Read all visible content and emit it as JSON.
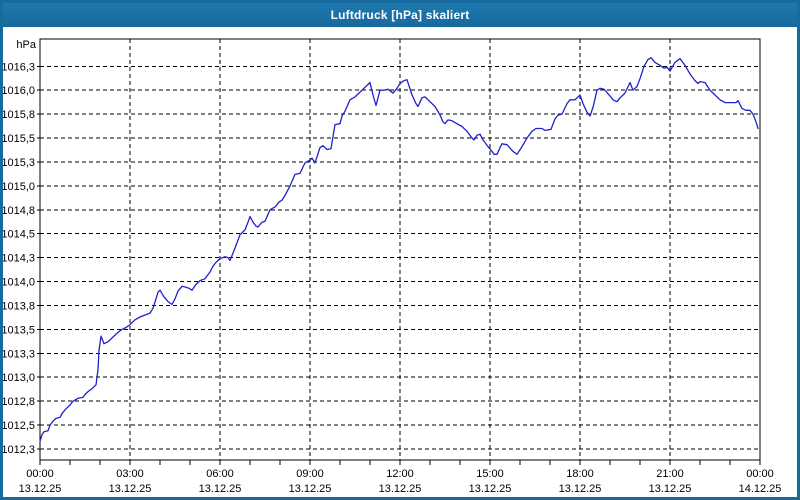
{
  "window": {
    "title": "Luftdruck [hPa] skaliert"
  },
  "colors": {
    "frame": "#176a9e",
    "titlebar_text": "#ffffff",
    "plot_background": "#ffffff",
    "grid": "#000000",
    "axis_text": "#000000",
    "line": "#2121c8"
  },
  "chart_data": {
    "type": "line",
    "title": "Luftdruck [hPa] skaliert",
    "ylabel_unit": "hPa",
    "grid": "dashed",
    "y_axis": {
      "range_top": 1016.535,
      "range_bottom": 1012.135,
      "ticks": [
        {
          "value": 1016.25,
          "label": "1016,3"
        },
        {
          "value": 1016.0,
          "label": "1016,0"
        },
        {
          "value": 1015.75,
          "label": "1015,8"
        },
        {
          "value": 1015.5,
          "label": "1015,5"
        },
        {
          "value": 1015.25,
          "label": "1015,3"
        },
        {
          "value": 1015.0,
          "label": "1015,0"
        },
        {
          "value": 1014.75,
          "label": "1014,8"
        },
        {
          "value": 1014.5,
          "label": "1014,5"
        },
        {
          "value": 1014.25,
          "label": "1014,3"
        },
        {
          "value": 1014.0,
          "label": "1014,0"
        },
        {
          "value": 1013.75,
          "label": "1013,8"
        },
        {
          "value": 1013.5,
          "label": "1013,5"
        },
        {
          "value": 1013.25,
          "label": "1013,3"
        },
        {
          "value": 1013.0,
          "label": "1013,0"
        },
        {
          "value": 1012.75,
          "label": "1012,8"
        },
        {
          "value": 1012.5,
          "label": "1012,5"
        },
        {
          "value": 1012.25,
          "label": "1012,3"
        }
      ]
    },
    "x_axis": {
      "range_minutes": [
        0,
        1440
      ],
      "minor_tick_minutes": 60,
      "ticks": [
        {
          "minutes": 0,
          "time": "00:00",
          "date": "13.12.25"
        },
        {
          "minutes": 180,
          "time": "03:00",
          "date": "13.12.25"
        },
        {
          "minutes": 360,
          "time": "06:00",
          "date": "13.12.25"
        },
        {
          "minutes": 540,
          "time": "09:00",
          "date": "13.12.25"
        },
        {
          "minutes": 720,
          "time": "12:00",
          "date": "13.12.25"
        },
        {
          "minutes": 900,
          "time": "15:00",
          "date": "13.12.25"
        },
        {
          "minutes": 1080,
          "time": "18:00",
          "date": "13.12.25"
        },
        {
          "minutes": 1260,
          "time": "21:00",
          "date": "13.12.25"
        },
        {
          "minutes": 1440,
          "time": "00:00",
          "date": "14.12.25"
        }
      ]
    },
    "series": [
      {
        "name": "Luftdruck",
        "color": "#2121c8",
        "points": [
          [
            0,
            1012.33
          ],
          [
            4,
            1012.4
          ],
          [
            8,
            1012.43
          ],
          [
            16,
            1012.44
          ],
          [
            20,
            1012.5
          ],
          [
            26,
            1012.54
          ],
          [
            32,
            1012.57
          ],
          [
            40,
            1012.58
          ],
          [
            44,
            1012.62
          ],
          [
            52,
            1012.67
          ],
          [
            60,
            1012.71
          ],
          [
            66,
            1012.75
          ],
          [
            76,
            1012.78
          ],
          [
            86,
            1012.79
          ],
          [
            90,
            1012.82
          ],
          [
            96,
            1012.85
          ],
          [
            104,
            1012.88
          ],
          [
            112,
            1012.92
          ],
          [
            116,
            1013.08
          ],
          [
            118,
            1013.28
          ],
          [
            122,
            1013.43
          ],
          [
            128,
            1013.35
          ],
          [
            136,
            1013.37
          ],
          [
            146,
            1013.42
          ],
          [
            156,
            1013.47
          ],
          [
            164,
            1013.5
          ],
          [
            172,
            1013.52
          ],
          [
            180,
            1013.55
          ],
          [
            190,
            1013.6
          ],
          [
            200,
            1013.63
          ],
          [
            210,
            1013.65
          ],
          [
            220,
            1013.67
          ],
          [
            226,
            1013.72
          ],
          [
            232,
            1013.82
          ],
          [
            236,
            1013.89
          ],
          [
            240,
            1013.91
          ],
          [
            248,
            1013.84
          ],
          [
            256,
            1013.79
          ],
          [
            264,
            1013.76
          ],
          [
            270,
            1013.82
          ],
          [
            276,
            1013.9
          ],
          [
            284,
            1013.95
          ],
          [
            292,
            1013.94
          ],
          [
            298,
            1013.93
          ],
          [
            304,
            1013.91
          ],
          [
            312,
            1013.97
          ],
          [
            320,
            1014.01
          ],
          [
            330,
            1014.03
          ],
          [
            340,
            1014.1
          ],
          [
            346,
            1014.16
          ],
          [
            352,
            1014.2
          ],
          [
            360,
            1014.24
          ],
          [
            370,
            1014.26
          ],
          [
            376,
            1014.25
          ],
          [
            380,
            1014.22
          ],
          [
            390,
            1014.35
          ],
          [
            400,
            1014.49
          ],
          [
            410,
            1014.54
          ],
          [
            416,
            1014.62
          ],
          [
            420,
            1014.68
          ],
          [
            426,
            1014.62
          ],
          [
            432,
            1014.58
          ],
          [
            436,
            1014.57
          ],
          [
            444,
            1014.62
          ],
          [
            450,
            1014.63
          ],
          [
            460,
            1014.75
          ],
          [
            470,
            1014.78
          ],
          [
            478,
            1014.83
          ],
          [
            484,
            1014.85
          ],
          [
            490,
            1014.9
          ],
          [
            500,
            1015.0
          ],
          [
            510,
            1015.12
          ],
          [
            520,
            1015.13
          ],
          [
            530,
            1015.24
          ],
          [
            540,
            1015.27
          ],
          [
            544,
            1015.29
          ],
          [
            550,
            1015.24
          ],
          [
            560,
            1015.4
          ],
          [
            566,
            1015.42
          ],
          [
            574,
            1015.38
          ],
          [
            582,
            1015.39
          ],
          [
            590,
            1015.64
          ],
          [
            600,
            1015.65
          ],
          [
            604,
            1015.73
          ],
          [
            610,
            1015.78
          ],
          [
            620,
            1015.9
          ],
          [
            630,
            1015.93
          ],
          [
            640,
            1015.98
          ],
          [
            650,
            1016.03
          ],
          [
            660,
            1016.08
          ],
          [
            666,
            1015.95
          ],
          [
            672,
            1015.84
          ],
          [
            680,
            1016.0
          ],
          [
            688,
            1016.0
          ],
          [
            696,
            1016.01
          ],
          [
            706,
            1015.97
          ],
          [
            714,
            1016.02
          ],
          [
            720,
            1016.07
          ],
          [
            728,
            1016.1
          ],
          [
            734,
            1016.11
          ],
          [
            744,
            1015.95
          ],
          [
            752,
            1015.86
          ],
          [
            756,
            1015.83
          ],
          [
            764,
            1015.92
          ],
          [
            770,
            1015.93
          ],
          [
            780,
            1015.88
          ],
          [
            790,
            1015.83
          ],
          [
            800,
            1015.74
          ],
          [
            806,
            1015.67
          ],
          [
            810,
            1015.65
          ],
          [
            816,
            1015.69
          ],
          [
            824,
            1015.68
          ],
          [
            834,
            1015.65
          ],
          [
            844,
            1015.62
          ],
          [
            854,
            1015.57
          ],
          [
            864,
            1015.5
          ],
          [
            868,
            1015.48
          ],
          [
            874,
            1015.53
          ],
          [
            880,
            1015.54
          ],
          [
            886,
            1015.48
          ],
          [
            896,
            1015.41
          ],
          [
            904,
            1015.36
          ],
          [
            908,
            1015.33
          ],
          [
            914,
            1015.33
          ],
          [
            920,
            1015.4
          ],
          [
            924,
            1015.44
          ],
          [
            934,
            1015.43
          ],
          [
            946,
            1015.36
          ],
          [
            954,
            1015.33
          ],
          [
            964,
            1015.41
          ],
          [
            974,
            1015.5
          ],
          [
            984,
            1015.57
          ],
          [
            992,
            1015.6
          ],
          [
            1004,
            1015.6
          ],
          [
            1010,
            1015.58
          ],
          [
            1022,
            1015.59
          ],
          [
            1030,
            1015.7
          ],
          [
            1036,
            1015.74
          ],
          [
            1044,
            1015.75
          ],
          [
            1054,
            1015.86
          ],
          [
            1060,
            1015.9
          ],
          [
            1070,
            1015.9
          ],
          [
            1080,
            1015.95
          ],
          [
            1086,
            1015.86
          ],
          [
            1094,
            1015.77
          ],
          [
            1100,
            1015.73
          ],
          [
            1106,
            1015.82
          ],
          [
            1114,
            1016.0
          ],
          [
            1120,
            1016.02
          ],
          [
            1128,
            1016.01
          ],
          [
            1140,
            1015.94
          ],
          [
            1146,
            1015.9
          ],
          [
            1154,
            1015.88
          ],
          [
            1160,
            1015.92
          ],
          [
            1170,
            1015.97
          ],
          [
            1180,
            1016.08
          ],
          [
            1186,
            1016.0
          ],
          [
            1194,
            1016.04
          ],
          [
            1200,
            1016.12
          ],
          [
            1208,
            1016.25
          ],
          [
            1216,
            1016.32
          ],
          [
            1222,
            1016.34
          ],
          [
            1230,
            1016.29
          ],
          [
            1240,
            1016.26
          ],
          [
            1248,
            1016.23
          ],
          [
            1254,
            1016.24
          ],
          [
            1260,
            1016.2
          ],
          [
            1270,
            1016.29
          ],
          [
            1280,
            1016.33
          ],
          [
            1290,
            1016.26
          ],
          [
            1300,
            1016.17
          ],
          [
            1310,
            1016.1
          ],
          [
            1316,
            1016.07
          ],
          [
            1320,
            1016.09
          ],
          [
            1330,
            1016.08
          ],
          [
            1340,
            1016.0
          ],
          [
            1350,
            1015.95
          ],
          [
            1360,
            1015.9
          ],
          [
            1370,
            1015.87
          ],
          [
            1380,
            1015.87
          ],
          [
            1392,
            1015.87
          ],
          [
            1396,
            1015.89
          ],
          [
            1404,
            1015.81
          ],
          [
            1412,
            1015.79
          ],
          [
            1420,
            1015.79
          ],
          [
            1426,
            1015.75
          ],
          [
            1432,
            1015.67
          ],
          [
            1436,
            1015.6
          ]
        ]
      }
    ]
  }
}
